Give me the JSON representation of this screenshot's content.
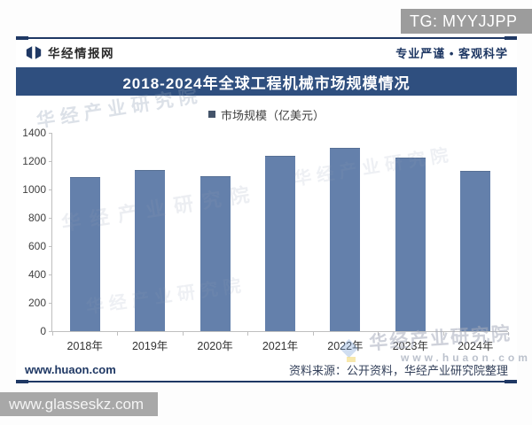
{
  "overlays": {
    "tg_badge": "TG: MYYJJPP",
    "bottom_badge": "www.glasseskz.com"
  },
  "header": {
    "brand": "华经情报网",
    "slogan": "专业严谨 • 客观科学"
  },
  "chart_data": {
    "type": "bar",
    "title": "2018-2024年全球工程机械市场规模情况",
    "series_name": "市场规模（亿美元）",
    "categories": [
      "2018年",
      "2019年",
      "2020年",
      "2021年",
      "2022年",
      "2023年",
      "2024年"
    ],
    "values": [
      1090,
      1140,
      1095,
      1240,
      1295,
      1225,
      1130
    ],
    "xlabel": "",
    "ylabel": "",
    "ylim": [
      0,
      1400
    ],
    "ytick_step": 200,
    "grid": false,
    "legend_position": "top",
    "bar_color": "#6480AB"
  },
  "footer": {
    "left": "www.huaon.com",
    "right": "资料来源：公开资料，华经产业研究院整理"
  },
  "watermarks": {
    "text": "华经产业研究院",
    "url": "www.huaon.com"
  },
  "colors": {
    "accent_navy": "#1F3864",
    "title_banner": "#2F4F7F",
    "bar": "#6480AB",
    "legend_marker": "#44546A",
    "badge_gray": "#9C9C9C"
  }
}
